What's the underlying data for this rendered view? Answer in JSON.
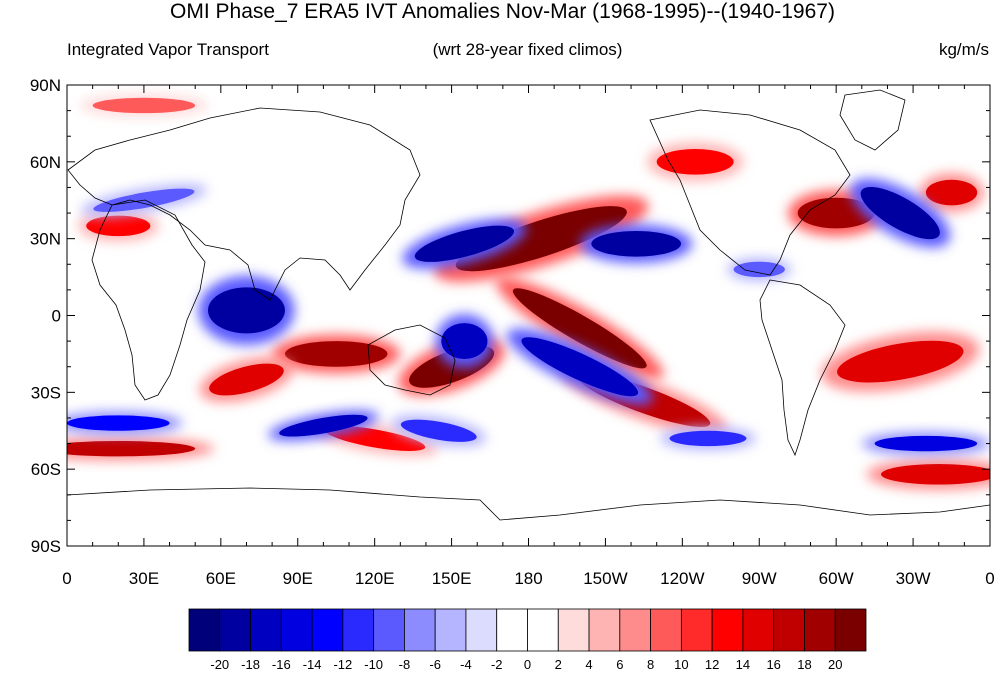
{
  "title": "OMI Phase_7 ERA5 IVT Anomalies Nov-Mar (1968-1995)--(1940-1967)",
  "left_string": "Integrated Vapor Transport",
  "center_string": "(wrt 28-year fixed climos)",
  "right_string": "kg/m/s",
  "map": {
    "projection": "cylindrical equidistant",
    "lon_range": [
      0,
      360
    ],
    "lat_range": [
      -90,
      90
    ],
    "lat_labels": [
      "90N",
      "60N",
      "30N",
      "0",
      "30S",
      "60S",
      "90S"
    ],
    "lon_labels": [
      "0",
      "30E",
      "60E",
      "90E",
      "120E",
      "150E",
      "180",
      "150W",
      "120W",
      "90W",
      "60W",
      "30W",
      "0"
    ]
  },
  "colorbar": {
    "labels": [
      "-20",
      "-18",
      "-16",
      "-14",
      "-12",
      "-10",
      "-8",
      "-6",
      "-4",
      "-2",
      "0",
      "2",
      "4",
      "6",
      "8",
      "10",
      "12",
      "14",
      "16",
      "18",
      "20"
    ],
    "colors": [
      "#00007a",
      "#0000a0",
      "#0000c0",
      "#0000e0",
      "#0000ff",
      "#2a2aff",
      "#5a5aff",
      "#8c8cff",
      "#b4b4ff",
      "#dcdcff",
      "#ffffff",
      "#ffffff",
      "#ffdcdc",
      "#ffb4b4",
      "#ff8c8c",
      "#ff5a5a",
      "#ff2a2a",
      "#ff0000",
      "#e00000",
      "#c00000",
      "#a00000",
      "#7a0000"
    ]
  },
  "field_blobs": {
    "positive": [
      {
        "lon": 185,
        "lat": 30,
        "w": 70,
        "h": 14,
        "rot": -18,
        "v": 20
      },
      {
        "lon": 200,
        "lat": -5,
        "w": 60,
        "h": 10,
        "rot": 30,
        "v": 20
      },
      {
        "lon": 105,
        "lat": -15,
        "w": 40,
        "h": 10,
        "rot": 0,
        "v": 18
      },
      {
        "lon": 150,
        "lat": -20,
        "w": 35,
        "h": 12,
        "rot": -20,
        "v": 20
      },
      {
        "lon": 70,
        "lat": -25,
        "w": 30,
        "h": 10,
        "rot": -15,
        "v": 14
      },
      {
        "lon": 225,
        "lat": -33,
        "w": 55,
        "h": 10,
        "rot": 20,
        "v": 16
      },
      {
        "lon": 325,
        "lat": -18,
        "w": 50,
        "h": 14,
        "rot": -10,
        "v": 14
      },
      {
        "lon": 300,
        "lat": 40,
        "w": 30,
        "h": 12,
        "rot": 0,
        "v": 18
      },
      {
        "lon": 20,
        "lat": 35,
        "w": 25,
        "h": 8,
        "rot": 0,
        "v": 12
      },
      {
        "lon": 20,
        "lat": -52,
        "w": 60,
        "h": 6,
        "rot": 0,
        "v": 16
      },
      {
        "lon": 120,
        "lat": -48,
        "w": 40,
        "h": 7,
        "rot": 10,
        "v": 12
      },
      {
        "lon": 340,
        "lat": -62,
        "w": 45,
        "h": 8,
        "rot": 0,
        "v": 14
      },
      {
        "lon": 245,
        "lat": 60,
        "w": 30,
        "h": 10,
        "rot": 0,
        "v": 12
      },
      {
        "lon": 30,
        "lat": 82,
        "w": 40,
        "h": 6,
        "rot": 0,
        "v": 8
      },
      {
        "lon": 345,
        "lat": 48,
        "w": 20,
        "h": 10,
        "rot": 0,
        "v": 14
      }
    ],
    "negative": [
      {
        "lon": 70,
        "lat": 2,
        "w": 30,
        "h": 18,
        "rot": 0,
        "v": -20
      },
      {
        "lon": 155,
        "lat": 28,
        "w": 40,
        "h": 10,
        "rot": -15,
        "v": -20
      },
      {
        "lon": 222,
        "lat": 28,
        "w": 35,
        "h": 10,
        "rot": 0,
        "v": -20
      },
      {
        "lon": 200,
        "lat": -20,
        "w": 50,
        "h": 10,
        "rot": 25,
        "v": -18
      },
      {
        "lon": 155,
        "lat": -10,
        "w": 18,
        "h": 14,
        "rot": 0,
        "v": -18
      },
      {
        "lon": 100,
        "lat": -43,
        "w": 35,
        "h": 6,
        "rot": -10,
        "v": -18
      },
      {
        "lon": 325,
        "lat": 40,
        "w": 35,
        "h": 12,
        "rot": 30,
        "v": -20
      },
      {
        "lon": 335,
        "lat": -50,
        "w": 40,
        "h": 6,
        "rot": 0,
        "v": -16
      },
      {
        "lon": 20,
        "lat": -42,
        "w": 40,
        "h": 6,
        "rot": 0,
        "v": -14
      },
      {
        "lon": 145,
        "lat": -45,
        "w": 30,
        "h": 7,
        "rot": 10,
        "v": -12
      },
      {
        "lon": 30,
        "lat": 45,
        "w": 40,
        "h": 6,
        "rot": -10,
        "v": -10
      },
      {
        "lon": 250,
        "lat": -48,
        "w": 30,
        "h": 6,
        "rot": 0,
        "v": -12
      },
      {
        "lon": 270,
        "lat": 18,
        "w": 20,
        "h": 6,
        "rot": 0,
        "v": -10
      }
    ]
  }
}
